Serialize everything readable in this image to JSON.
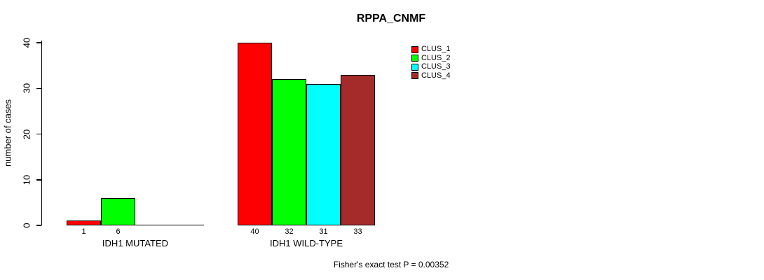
{
  "title": "RPPA_CNMF",
  "chart_data": {
    "type": "bar",
    "title": "RPPA_CNMF",
    "xlabel": "",
    "ylabel": "number of cases",
    "ylim": [
      0,
      40
    ],
    "y_ticks": [
      0,
      10,
      20,
      30,
      40
    ],
    "grid": false,
    "legend_position": "top-right-inside",
    "categories": [
      "IDH1 MUTATED",
      "IDH1 WILD-TYPE"
    ],
    "series": [
      {
        "name": "CLUS_1",
        "color": "#FF0000",
        "values": [
          1,
          40
        ]
      },
      {
        "name": "CLUS_2",
        "color": "#00FF00",
        "values": [
          6,
          32
        ]
      },
      {
        "name": "CLUS_3",
        "color": "#00FFFF",
        "values": [
          0,
          31
        ]
      },
      {
        "name": "CLUS_4",
        "color": "#A52A2A",
        "values": [
          0,
          33
        ]
      }
    ],
    "bar_value_labels": {
      "IDH1 MUTATED": [
        "1",
        "6",
        "",
        ""
      ],
      "IDH1 WILD-TYPE": [
        "40",
        "32",
        "31",
        "33"
      ]
    },
    "annotation": "Fisher's exact test P = 0.00352"
  }
}
